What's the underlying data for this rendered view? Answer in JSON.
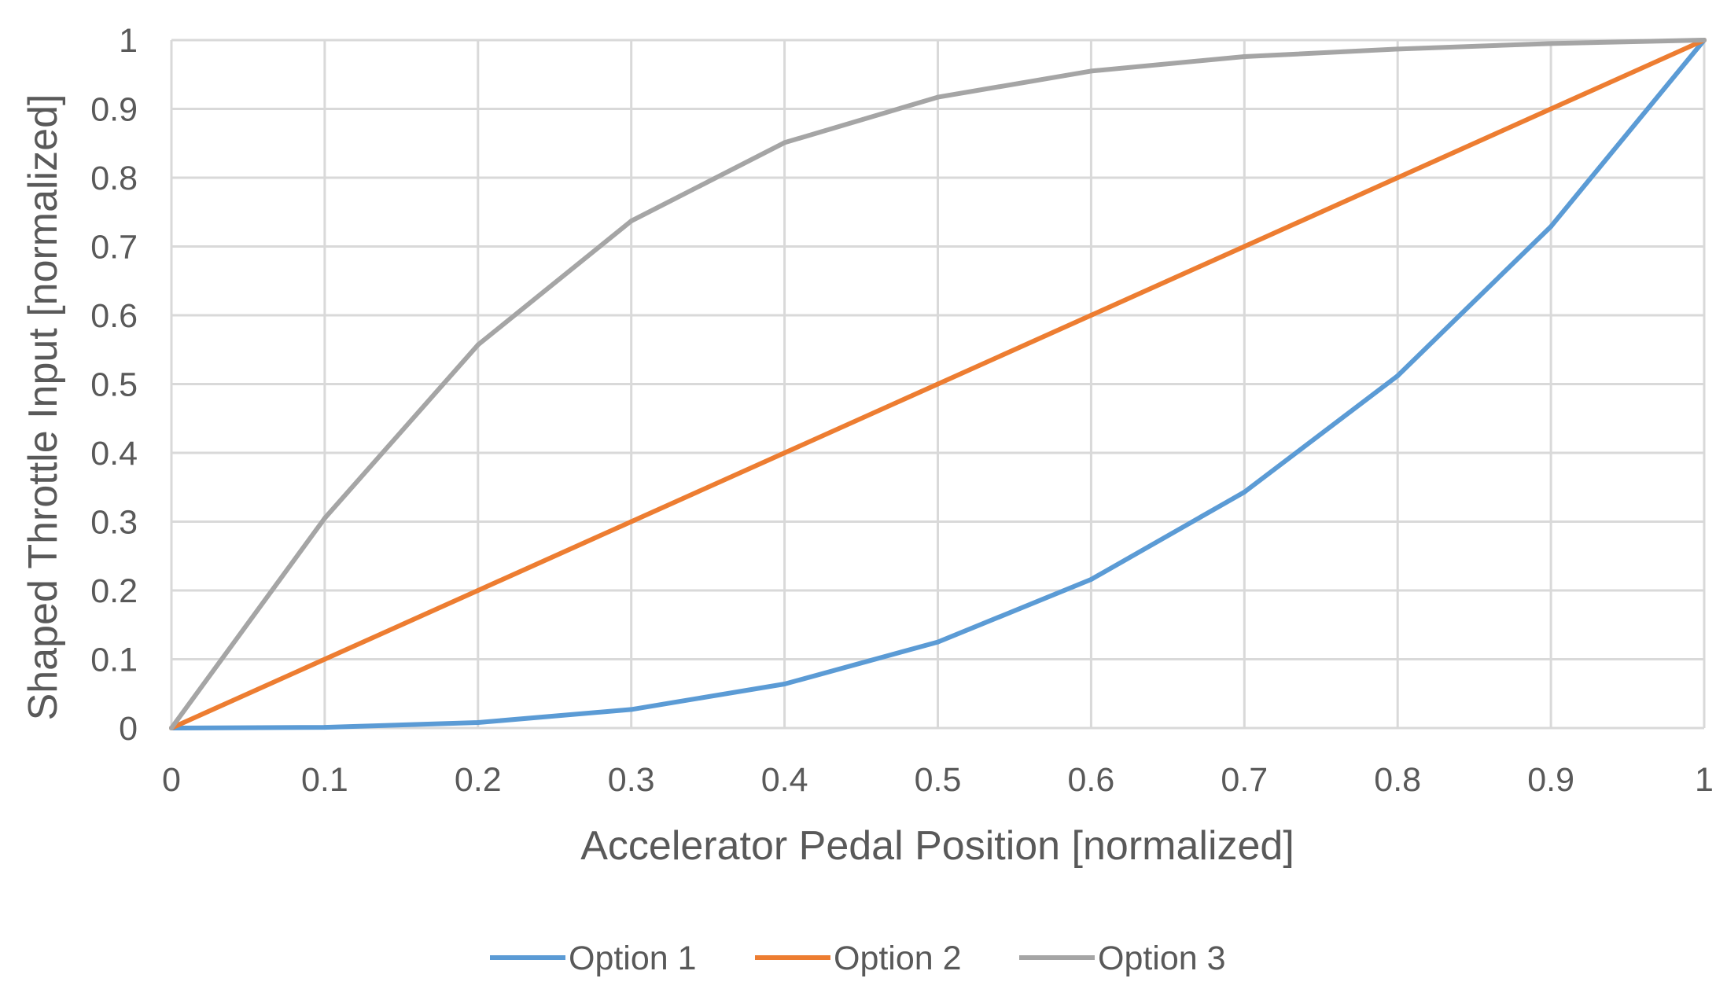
{
  "chart_data": {
    "type": "line",
    "title": "",
    "xlabel": "Accelerator Pedal Position [normalized]",
    "ylabel": "Shaped Throttle Input [normalized]",
    "xlim": [
      0,
      1
    ],
    "ylim": [
      0,
      1
    ],
    "grid": true,
    "legend_position": "bottom",
    "x": [
      0,
      0.1,
      0.2,
      0.3,
      0.4,
      0.5,
      0.6,
      0.7,
      0.8,
      0.9,
      1
    ],
    "x_tick_labels": [
      "0",
      "0.1",
      "0.2",
      "0.3",
      "0.4",
      "0.5",
      "0.6",
      "0.7",
      "0.8",
      "0.9",
      "1"
    ],
    "y_tick_labels": [
      "0",
      "0.1",
      "0.2",
      "0.3",
      "0.4",
      "0.5",
      "0.6",
      "0.7",
      "0.8",
      "0.9",
      "1"
    ],
    "series": [
      {
        "name": "Option 1",
        "color": "#5B9BD5",
        "values": [
          0,
          0.001,
          0.008,
          0.027,
          0.064,
          0.125,
          0.216,
          0.343,
          0.512,
          0.729,
          1
        ]
      },
      {
        "name": "Option 2",
        "color": "#ED7D31",
        "values": [
          0,
          0.1,
          0.2,
          0.3,
          0.4,
          0.5,
          0.6,
          0.7,
          0.8,
          0.9,
          1
        ]
      },
      {
        "name": "Option 3",
        "color": "#A5A5A5",
        "values": [
          0,
          0.305,
          0.557,
          0.737,
          0.851,
          0.917,
          0.955,
          0.976,
          0.987,
          0.995,
          1
        ]
      }
    ]
  }
}
